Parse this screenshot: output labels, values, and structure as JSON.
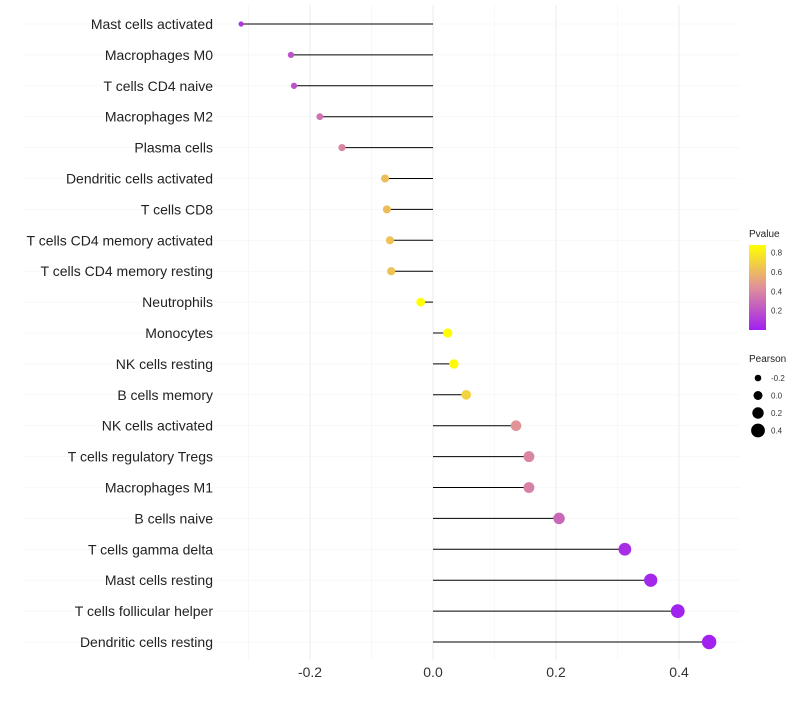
{
  "chart_data": {
    "type": "lollipop",
    "title": "",
    "xlabel": "",
    "ylabel": "",
    "xlim": [
      -0.33,
      0.5
    ],
    "xticks": [
      -0.2,
      0.0,
      0.2,
      0.4
    ],
    "xtick_labels": [
      "-0.2",
      "0.0",
      "0.2",
      "0.4"
    ],
    "grid": true,
    "categories": [
      "Mast cells activated",
      "Macrophages M0",
      "T cells CD4 naive",
      "Macrophages M2",
      "Plasma cells",
      "Dendritic cells activated",
      "T cells CD8",
      "T cells CD4 memory activated",
      "T cells CD4 memory resting",
      "Neutrophils",
      "Monocytes",
      "NK cells resting",
      "B cells memory",
      "NK cells activated",
      "T cells regulatory  Tregs ",
      "Macrophages M1",
      "B cells naive",
      "T cells gamma delta",
      "Mast cells resting",
      "T cells follicular helper",
      "Dendritic cells resting"
    ],
    "pearson": [
      -0.312,
      -0.231,
      -0.226,
      -0.184,
      -0.148,
      -0.078,
      -0.075,
      -0.07,
      -0.068,
      -0.02,
      0.024,
      0.034,
      0.054,
      0.135,
      0.156,
      0.156,
      0.205,
      0.312,
      0.354,
      0.398,
      0.449
    ],
    "pvalue": [
      0.1,
      0.2,
      0.2,
      0.33,
      0.4,
      0.62,
      0.62,
      0.64,
      0.64,
      0.9,
      0.88,
      0.86,
      0.7,
      0.45,
      0.4,
      0.38,
      0.28,
      0.05,
      0.03,
      0.01,
      0.004
    ],
    "legend": {
      "placement": "right",
      "color_title": "Pvalue",
      "color_ticks": [
        0.2,
        0.4,
        0.6,
        0.8
      ],
      "color_tick_labels": [
        "0.2",
        "0.4",
        "0.6",
        "0.8"
      ],
      "color_low": "#a020f0",
      "color_mid": "#e0909a",
      "color_high": "#ffff00",
      "size_title": "Pearson",
      "size_values": [
        -0.2,
        0.0,
        0.2,
        0.4
      ],
      "size_labels": [
        "-0.2",
        "0.0",
        "0.2",
        "0.4"
      ]
    }
  }
}
